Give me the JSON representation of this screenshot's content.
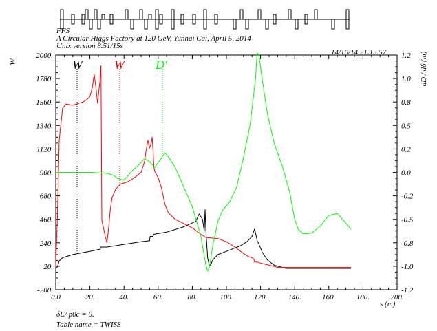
{
  "header": {
    "program": "FFS",
    "title": "A Circular Higgs Factory at 120 GeV, Yunhai Cai, April 5, 2014",
    "version": "Unix version 8.51/15s",
    "timestamp": "14/10/14  21.15.57"
  },
  "footer": {
    "delta_label": "δE/ p0c  =  0.",
    "table_label": "Table name = TWISS"
  },
  "chart_data": {
    "type": "line",
    "xlabel": "s (m)",
    "ylabel_left": "W",
    "ylabel_right": "dD / dδ (m)",
    "xlim": [
      0,
      200
    ],
    "ylim_left": [
      -200,
      2000
    ],
    "ylim_right": [
      -1.2,
      1.2
    ],
    "x_ticks": [
      "0.0",
      "20.",
      "40.",
      "60.",
      "80.",
      "100.",
      "120.",
      "140.",
      "160.",
      "180.",
      "200."
    ],
    "y_left_ticks": [
      "-200.",
      "20.",
      "240.",
      "460.",
      "680.",
      "900.",
      "1120.",
      "1340.",
      "1560.",
      "1780.",
      "2000."
    ],
    "y_right_ticks": [
      "-1.2",
      "-1.0",
      "-0.8",
      "-0.5",
      "-0.2",
      "0.0",
      "0.2",
      "0.5",
      "0.8",
      "1.0",
      "1.2"
    ],
    "grid": false,
    "series": [
      {
        "name": "W",
        "axis": "left",
        "color": "#000000",
        "marker_s": 12.5,
        "points": [
          [
            0,
            0
          ],
          [
            1,
            15
          ],
          [
            2,
            70
          ],
          [
            4,
            100
          ],
          [
            10,
            130
          ],
          [
            20,
            160
          ],
          [
            26,
            180
          ],
          [
            26.3,
            200
          ],
          [
            30,
            200
          ],
          [
            40,
            225
          ],
          [
            50,
            250
          ],
          [
            55,
            260
          ],
          [
            55.3,
            300
          ],
          [
            57,
            300
          ],
          [
            57.5,
            320
          ],
          [
            65,
            340
          ],
          [
            75,
            390
          ],
          [
            82,
            440
          ],
          [
            84,
            510
          ],
          [
            86,
            460
          ],
          [
            87,
            350
          ],
          [
            87.5,
            550
          ],
          [
            88,
            350
          ],
          [
            89,
            100
          ],
          [
            89.5,
            60
          ],
          [
            90,
            20
          ],
          [
            91,
            40
          ],
          [
            92,
            80
          ],
          [
            95,
            130
          ],
          [
            100,
            160
          ],
          [
            108,
            210
          ],
          [
            112,
            250
          ],
          [
            115,
            300
          ],
          [
            116.5,
            370
          ],
          [
            117.5,
            300
          ],
          [
            118,
            260
          ],
          [
            119,
            230
          ],
          [
            121,
            150
          ],
          [
            124,
            80
          ],
          [
            128,
            30
          ],
          [
            135,
            0
          ],
          [
            150,
            0
          ],
          [
            173,
            0
          ]
        ]
      },
      {
        "name": "W",
        "axis": "left",
        "color": "#ff0000",
        "marker_s": 37.5,
        "points": [
          [
            0,
            20
          ],
          [
            1,
            500
          ],
          [
            2,
            1200
          ],
          [
            4,
            1500
          ],
          [
            6,
            1540
          ],
          [
            10,
            1530
          ],
          [
            16,
            1560
          ],
          [
            18,
            1580
          ],
          [
            20,
            1610
          ],
          [
            21.5,
            1700
          ],
          [
            22.5,
            1820
          ],
          [
            23.5,
            1700
          ],
          [
            24.5,
            1550
          ],
          [
            25.5,
            1700
          ],
          [
            26,
            1770
          ],
          [
            26.5,
            1900
          ],
          [
            27,
            450
          ],
          [
            28,
            380
          ],
          [
            29,
            300
          ],
          [
            30,
            240
          ],
          [
            31,
            380
          ],
          [
            32,
            560
          ],
          [
            33,
            660
          ],
          [
            35,
            740
          ],
          [
            38,
            790
          ],
          [
            42,
            810
          ],
          [
            46,
            850
          ],
          [
            50,
            900
          ],
          [
            52,
            1000
          ],
          [
            53,
            1110
          ],
          [
            54,
            1200
          ],
          [
            55,
            1130
          ],
          [
            56,
            1180
          ],
          [
            56.5,
            1230
          ],
          [
            57,
            1100
          ],
          [
            57.5,
            950
          ],
          [
            58,
            910
          ],
          [
            60,
            850
          ],
          [
            62,
            750
          ],
          [
            64,
            600
          ],
          [
            66,
            520
          ],
          [
            70,
            460
          ],
          [
            75,
            420
          ],
          [
            80,
            380
          ],
          [
            85,
            320
          ],
          [
            88,
            290
          ],
          [
            95,
            280
          ],
          [
            100,
            250
          ],
          [
            105,
            200
          ],
          [
            110,
            140
          ],
          [
            113,
            110
          ],
          [
            115,
            100
          ],
          [
            116,
            90
          ],
          [
            116.5,
            60
          ],
          [
            118,
            60
          ],
          [
            120,
            50
          ],
          [
            125,
            30
          ],
          [
            130,
            10
          ],
          [
            135,
            10
          ],
          [
            173,
            10
          ]
        ]
      },
      {
        "name": "D'",
        "axis": "right",
        "color": "#00ff00",
        "marker_s": 62.5,
        "points": [
          [
            0,
            0
          ],
          [
            10,
            0
          ],
          [
            20,
            0
          ],
          [
            30,
            -0.01
          ],
          [
            34,
            -0.03
          ],
          [
            36,
            -0.06
          ],
          [
            40,
            -0.08
          ],
          [
            42,
            -0.04
          ],
          [
            45,
            0.02
          ],
          [
            50,
            0.1
          ],
          [
            52,
            0.14
          ],
          [
            55,
            0.11
          ],
          [
            58,
            0.05
          ],
          [
            60,
            0.1
          ],
          [
            62,
            0.15
          ],
          [
            64,
            0.2
          ],
          [
            66,
            0.16
          ],
          [
            70,
            0.05
          ],
          [
            75,
            -0.15
          ],
          [
            80,
            -0.35
          ],
          [
            85,
            -0.65
          ],
          [
            88,
            -0.95
          ],
          [
            89,
            -1.01
          ],
          [
            90,
            -0.97
          ],
          [
            92,
            -0.75
          ],
          [
            95,
            -0.5
          ],
          [
            98,
            -0.38
          ],
          [
            102,
            -0.3
          ],
          [
            106,
            -0.15
          ],
          [
            110,
            0.15
          ],
          [
            114,
            0.5
          ],
          [
            117,
            0.95
          ],
          [
            118,
            1.22
          ],
          [
            119,
            1.2
          ],
          [
            121,
            0.95
          ],
          [
            124,
            0.6
          ],
          [
            128,
            0.3
          ],
          [
            133,
            0.05
          ],
          [
            137,
            -0.2
          ],
          [
            140,
            -0.48
          ],
          [
            142,
            -0.58
          ],
          [
            145,
            -0.63
          ],
          [
            150,
            -0.62
          ],
          [
            155,
            -0.55
          ],
          [
            160,
            -0.44
          ],
          [
            165,
            -0.42
          ],
          [
            170,
            -0.52
          ],
          [
            173,
            -0.58
          ]
        ]
      }
    ]
  },
  "lattice": {
    "description_hidden": false
  }
}
